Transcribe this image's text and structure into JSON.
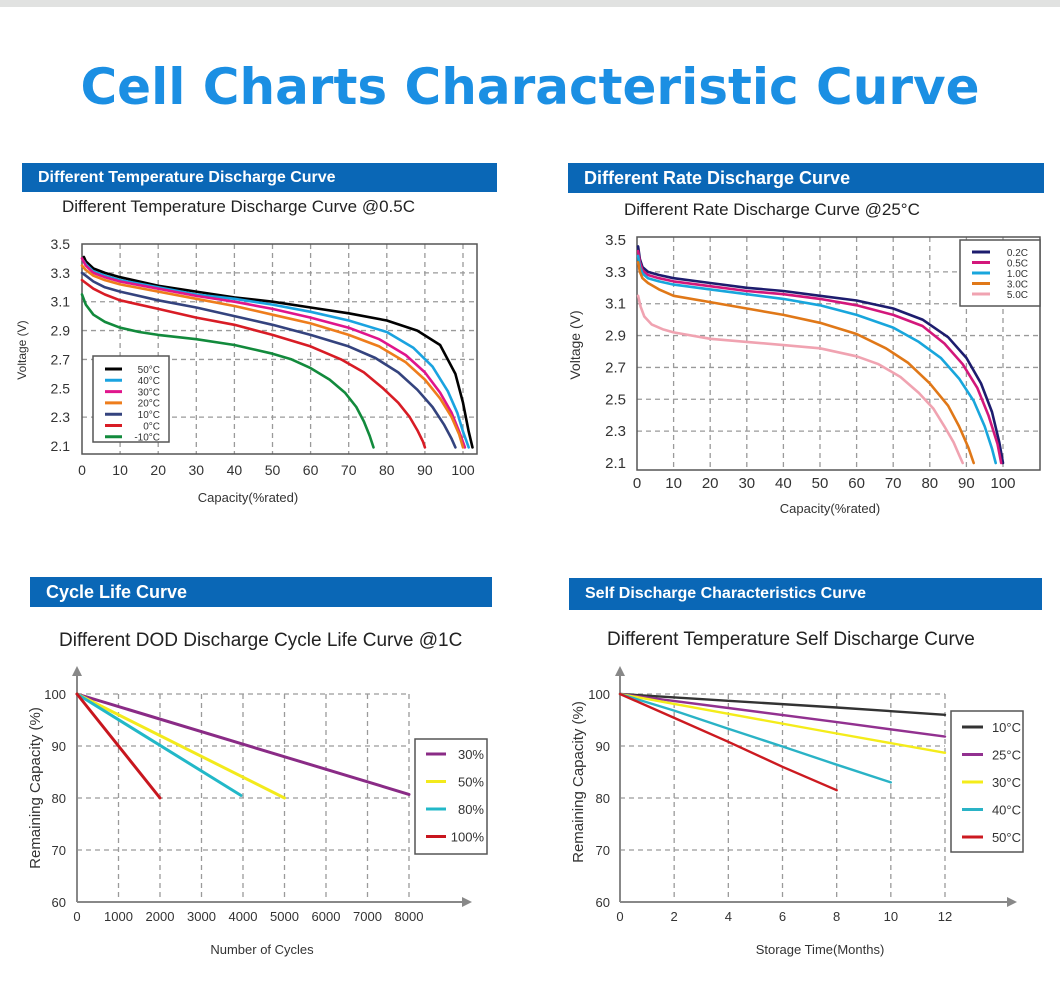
{
  "page": {
    "title": "Cell Charts Characteristic Curve",
    "accent_color": "#1b8fe3",
    "header_color": "#0a67b6"
  },
  "panels": [
    {
      "header": "Different Temperature Discharge Curve",
      "subtitle": "Different Temperature Discharge Curve @0.5C"
    },
    {
      "header": "Different Rate Discharge Curve",
      "subtitle": "Different Rate Discharge Curve @25°C"
    },
    {
      "header": "Cycle Life Curve",
      "subtitle": "Different DOD Discharge Cycle Life Curve @1C"
    },
    {
      "header": "Self Discharge Characteristics Curve",
      "subtitle": "Different Temperature Self Discharge Curve"
    }
  ],
  "chart_data": [
    {
      "type": "line",
      "title": "Different Temperature Discharge Curve @0.5C",
      "xlabel": "Capacity(%rated)",
      "ylabel": "Voltage (V)",
      "xlim": [
        0,
        103
      ],
      "ylim": [
        2.05,
        3.5
      ],
      "x_ticks": [
        0,
        10,
        20,
        30,
        40,
        50,
        60,
        70,
        80,
        90,
        100
      ],
      "y_ticks": [
        2.1,
        2.3,
        2.5,
        2.7,
        2.9,
        3.1,
        3.3,
        3.5
      ],
      "y_tick_labels": [
        "2.1",
        "2.3",
        "2.5",
        "2.7",
        "2.9",
        "3.1",
        "3.3",
        "3.5"
      ],
      "grid": true,
      "legend_position": "lower-left",
      "series": [
        {
          "name": "50°C",
          "color": "#000000",
          "x": [
            0.5,
            1,
            3,
            6,
            10,
            20,
            30,
            40,
            50,
            60,
            70,
            80,
            88,
            94,
            98,
            100,
            101.5,
            102.5
          ],
          "y": [
            3.41,
            3.38,
            3.33,
            3.3,
            3.27,
            3.21,
            3.17,
            3.13,
            3.1,
            3.06,
            3.02,
            2.97,
            2.9,
            2.8,
            2.6,
            2.4,
            2.2,
            2.09
          ]
        },
        {
          "name": "40°C",
          "color": "#1aa3e0",
          "x": [
            0.5,
            1,
            3,
            6,
            10,
            20,
            30,
            40,
            50,
            60,
            70,
            80,
            87,
            92,
            96,
            98.5,
            100,
            101.5
          ],
          "y": [
            3.38,
            3.36,
            3.31,
            3.28,
            3.25,
            3.2,
            3.15,
            3.12,
            3.08,
            3.03,
            2.97,
            2.89,
            2.78,
            2.65,
            2.48,
            2.33,
            2.2,
            2.09
          ]
        },
        {
          "name": "30°C",
          "color": "#e0158c",
          "x": [
            0,
            1,
            3,
            6,
            10,
            20,
            30,
            40,
            50,
            60,
            70,
            78,
            85,
            90,
            94,
            97,
            99,
            100.5
          ],
          "y": [
            3.4,
            3.35,
            3.3,
            3.27,
            3.24,
            3.19,
            3.14,
            3.1,
            3.05,
            2.99,
            2.92,
            2.84,
            2.73,
            2.61,
            2.47,
            2.33,
            2.2,
            2.09
          ]
        },
        {
          "name": "20°C",
          "color": "#ee7d1c",
          "x": [
            0,
            1,
            3,
            6,
            10,
            20,
            30,
            40,
            50,
            60,
            70,
            78,
            85,
            90,
            94,
            97,
            99,
            100
          ],
          "y": [
            3.35,
            3.32,
            3.28,
            3.25,
            3.22,
            3.17,
            3.12,
            3.07,
            3.01,
            2.95,
            2.87,
            2.79,
            2.68,
            2.56,
            2.43,
            2.3,
            2.18,
            2.09
          ]
        },
        {
          "name": "10°C",
          "color": "#34437e",
          "x": [
            0,
            1,
            3,
            6,
            10,
            20,
            30,
            40,
            50,
            60,
            70,
            77,
            83,
            88,
            92,
            95,
            97,
            98
          ],
          "y": [
            3.3,
            3.28,
            3.24,
            3.2,
            3.17,
            3.11,
            3.06,
            3.0,
            2.94,
            2.87,
            2.79,
            2.71,
            2.61,
            2.49,
            2.37,
            2.25,
            2.15,
            2.09
          ]
        },
        {
          "name": "0°C",
          "color": "#d81c25",
          "x": [
            0,
            1,
            3,
            6,
            10,
            20,
            30,
            40,
            50,
            60,
            68,
            74,
            79,
            83,
            86,
            88,
            89.5,
            90
          ],
          "y": [
            3.25,
            3.23,
            3.19,
            3.15,
            3.11,
            3.05,
            2.99,
            2.94,
            2.87,
            2.79,
            2.7,
            2.61,
            2.5,
            2.4,
            2.3,
            2.21,
            2.13,
            2.09
          ]
        },
        {
          "name": "-10°C",
          "color": "#128a3c",
          "x": [
            0,
            1,
            3,
            6,
            10,
            15,
            20,
            30,
            40,
            50,
            55,
            60,
            65,
            69,
            72,
            74,
            75.5,
            76.5
          ],
          "y": [
            3.15,
            3.08,
            3.01,
            2.96,
            2.92,
            2.89,
            2.87,
            2.84,
            2.8,
            2.74,
            2.7,
            2.64,
            2.56,
            2.47,
            2.37,
            2.27,
            2.17,
            2.09
          ]
        }
      ]
    },
    {
      "type": "line",
      "title": "Different Rate Discharge Curve @25°C",
      "xlabel": "Capacity(%rated)",
      "ylabel": "Voltage (V)",
      "xlim": [
        0,
        110
      ],
      "ylim": [
        2.1,
        3.5
      ],
      "x_ticks": [
        0,
        10,
        20,
        30,
        40,
        50,
        60,
        70,
        80,
        90,
        100
      ],
      "y_ticks": [
        2.1,
        2.3,
        2.5,
        2.7,
        2.9,
        3.1,
        3.3,
        3.5
      ],
      "y_tick_labels": [
        "2.1",
        "2.3",
        "2.5",
        "2.7",
        "2.9",
        "3.1",
        "3.3",
        "3.5"
      ],
      "grid": true,
      "legend_position": "top-right",
      "series": [
        {
          "name": "0.2C",
          "color": "#1d1c6e",
          "x": [
            0.3,
            0.8,
            1.5,
            3,
            6,
            10,
            20,
            30,
            40,
            50,
            60,
            70,
            78,
            85,
            90,
            94,
            97,
            99,
            100
          ],
          "y": [
            3.46,
            3.38,
            3.33,
            3.3,
            3.28,
            3.26,
            3.23,
            3.2,
            3.18,
            3.15,
            3.12,
            3.07,
            3.0,
            2.89,
            2.76,
            2.6,
            2.42,
            2.23,
            2.1
          ]
        },
        {
          "name": "0.5C",
          "color": "#d3177b",
          "x": [
            0.3,
            0.8,
            1.5,
            3,
            6,
            10,
            20,
            30,
            40,
            50,
            60,
            70,
            78,
            84,
            89,
            93,
            96,
            98.5,
            99.5
          ],
          "y": [
            3.43,
            3.36,
            3.31,
            3.28,
            3.26,
            3.24,
            3.21,
            3.18,
            3.16,
            3.13,
            3.09,
            3.03,
            2.96,
            2.85,
            2.72,
            2.57,
            2.4,
            2.22,
            2.1
          ]
        },
        {
          "name": "1.0C",
          "color": "#18a6dc",
          "x": [
            0.3,
            0.8,
            1.5,
            3,
            6,
            10,
            20,
            30,
            40,
            50,
            60,
            70,
            77,
            83,
            88,
            92,
            95,
            97,
            98
          ],
          "y": [
            3.4,
            3.33,
            3.29,
            3.26,
            3.24,
            3.22,
            3.19,
            3.16,
            3.13,
            3.09,
            3.03,
            2.95,
            2.86,
            2.76,
            2.63,
            2.49,
            2.33,
            2.19,
            2.1
          ]
        },
        {
          "name": "3.0C",
          "color": "#e07818",
          "x": [
            0.3,
            0.8,
            1.5,
            3,
            6,
            10,
            20,
            30,
            40,
            50,
            60,
            68,
            74,
            80,
            85,
            88,
            90.5,
            92
          ],
          "y": [
            3.36,
            3.3,
            3.26,
            3.23,
            3.19,
            3.15,
            3.11,
            3.07,
            3.03,
            2.98,
            2.91,
            2.82,
            2.73,
            2.6,
            2.46,
            2.33,
            2.2,
            2.1
          ]
        },
        {
          "name": "5.0C",
          "color": "#f0a3b1",
          "x": [
            0.3,
            1,
            2,
            4,
            7,
            10,
            20,
            30,
            40,
            50,
            60,
            66,
            72,
            77,
            81,
            84,
            86.5,
            88,
            89
          ],
          "y": [
            3.15,
            3.08,
            3.02,
            2.97,
            2.94,
            2.92,
            2.88,
            2.86,
            2.84,
            2.82,
            2.77,
            2.72,
            2.64,
            2.54,
            2.44,
            2.33,
            2.23,
            2.15,
            2.1
          ]
        }
      ]
    },
    {
      "type": "line",
      "title": "Different DOD Discharge Cycle Life Curve @1C",
      "xlabel": "Number of Cycles",
      "ylabel": "Remaining Capacity (%)",
      "xlim": [
        0,
        9500
      ],
      "ylim": [
        60,
        105
      ],
      "x_ticks": [
        0,
        1000,
        2000,
        3000,
        4000,
        5000,
        6000,
        7000,
        8000
      ],
      "y_ticks": [
        60,
        70,
        80,
        90,
        100
      ],
      "grid": true,
      "legend_position": "right",
      "series": [
        {
          "name": "30%",
          "color": "#8a2b86",
          "x": [
            0,
            8000
          ],
          "y": [
            100,
            80.7
          ]
        },
        {
          "name": "50%",
          "color": "#f3ea1c",
          "x": [
            0,
            5000
          ],
          "y": [
            100,
            80
          ]
        },
        {
          "name": "80%",
          "color": "#22b8c8",
          "x": [
            0,
            3950
          ],
          "y": [
            100,
            80.5
          ]
        },
        {
          "name": "100%",
          "color": "#c8161e",
          "x": [
            0,
            2000
          ],
          "y": [
            100,
            80
          ]
        }
      ]
    },
    {
      "type": "line",
      "title": "Different Temperature Self Discharge Curve",
      "xlabel": "Storage Time(Months)",
      "ylabel": "Remaining Capacity (%)",
      "xlim": [
        0,
        14.5
      ],
      "ylim": [
        60,
        105
      ],
      "x_ticks": [
        0,
        2,
        4,
        6,
        8,
        10,
        12
      ],
      "y_ticks": [
        60,
        70,
        80,
        90,
        100
      ],
      "grid": true,
      "legend_position": "right",
      "series": [
        {
          "name": "10°C",
          "color": "#333333",
          "x": [
            0,
            4,
            8,
            12
          ],
          "y": [
            100,
            98.7,
            97.4,
            96.0
          ]
        },
        {
          "name": "25°C",
          "color": "#923190",
          "x": [
            0,
            4,
            8,
            12
          ],
          "y": [
            100,
            97.3,
            94.6,
            91.8
          ]
        },
        {
          "name": "30°C",
          "color": "#f4ec1a",
          "x": [
            0,
            4,
            8,
            12
          ],
          "y": [
            100,
            96.2,
            92.4,
            88.7
          ]
        },
        {
          "name": "40°C",
          "color": "#2ab3c6",
          "x": [
            0,
            2,
            4,
            6,
            8,
            10
          ],
          "y": [
            100,
            96.8,
            93.3,
            89.9,
            86.4,
            83.0
          ]
        },
        {
          "name": "50°C",
          "color": "#cc1a20",
          "x": [
            0,
            2,
            4,
            6,
            8
          ],
          "y": [
            100,
            95.4,
            90.8,
            86.0,
            81.5
          ]
        }
      ]
    }
  ]
}
